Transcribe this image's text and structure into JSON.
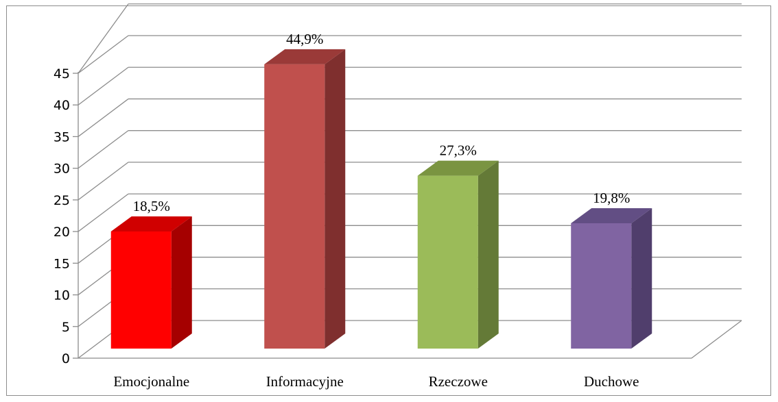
{
  "chart_data": {
    "type": "bar",
    "categories": [
      "Emocjonalne",
      "Informacyjne",
      "Rzeczowe",
      "Duchowe"
    ],
    "values": [
      18.5,
      44.9,
      27.3,
      19.8
    ],
    "data_labels": [
      "18,5%",
      "44,9%",
      "27,3%",
      "19,8%"
    ],
    "ylim": [
      0,
      45
    ],
    "yticks": [
      "0",
      "5",
      "10",
      "15",
      "20",
      "25",
      "30",
      "35",
      "40",
      "45"
    ],
    "grid": true,
    "three_d": true,
    "colors": {
      "front": [
        "#ff0000",
        "#c0504d",
        "#9bbb59",
        "#8064a2"
      ],
      "side": [
        "#a50000",
        "#7f2f2e",
        "#647a37",
        "#503e6c"
      ],
      "top": [
        "#d00000",
        "#9a3a38",
        "#7a9441",
        "#624e84"
      ],
      "grid": "#8c8c8c"
    }
  }
}
